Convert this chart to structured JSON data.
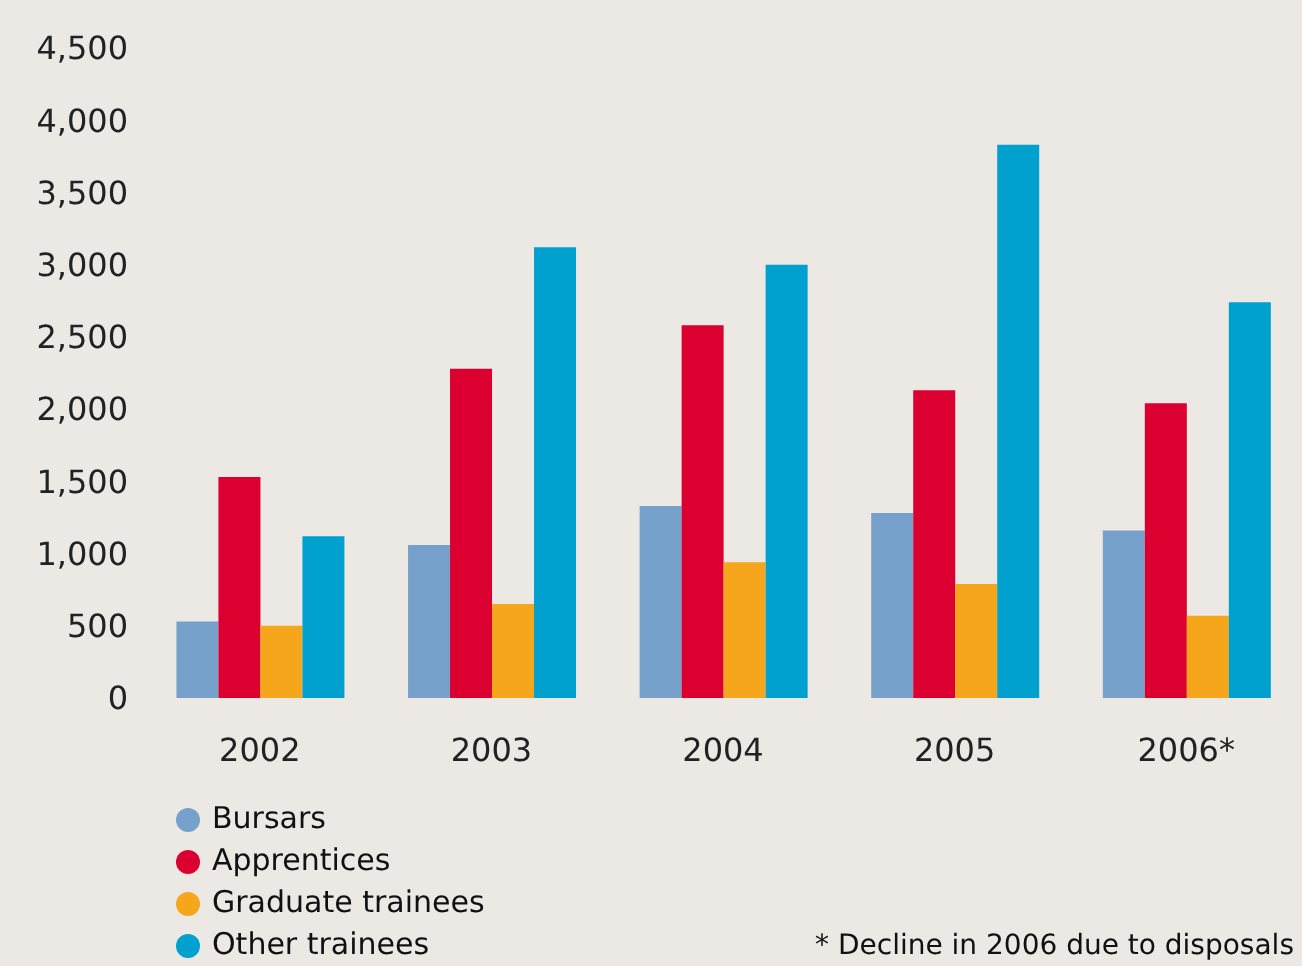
{
  "chart_data": {
    "type": "bar",
    "categories": [
      "2002",
      "2003",
      "2004",
      "2005",
      "2006*"
    ],
    "series": [
      {
        "name": "Bursars",
        "color": "#76a1cb",
        "values": [
          530,
          1060,
          1330,
          1280,
          1160
        ]
      },
      {
        "name": "Apprentices",
        "color": "#dc0030",
        "values": [
          1530,
          2280,
          2580,
          2130,
          2040
        ]
      },
      {
        "name": "Graduate trainees",
        "color": "#f5a61a",
        "values": [
          500,
          650,
          940,
          790,
          570
        ]
      },
      {
        "name": "Other trainees",
        "color": "#00a0cf",
        "values": [
          1120,
          3120,
          3000,
          3830,
          2740
        ]
      }
    ],
    "ylim": [
      0,
      4500
    ],
    "yticks": [
      0,
      500,
      {
        "value": 1000,
        "label": "1,000"
      },
      {
        "value": 1500,
        "label": "1,500"
      },
      {
        "value": 2000,
        "label": "2,000"
      },
      {
        "value": 2500,
        "label": "2,500"
      },
      {
        "value": 3000,
        "label": "3,000"
      },
      {
        "value": 3500,
        "label": "3,500"
      },
      {
        "value": 4000,
        "label": "4,000"
      },
      {
        "value": 4500,
        "label": "4,500"
      }
    ],
    "grid": false,
    "legend": "bottom left",
    "annotations": [
      "* Decline in 2006 due to disposals"
    ]
  }
}
